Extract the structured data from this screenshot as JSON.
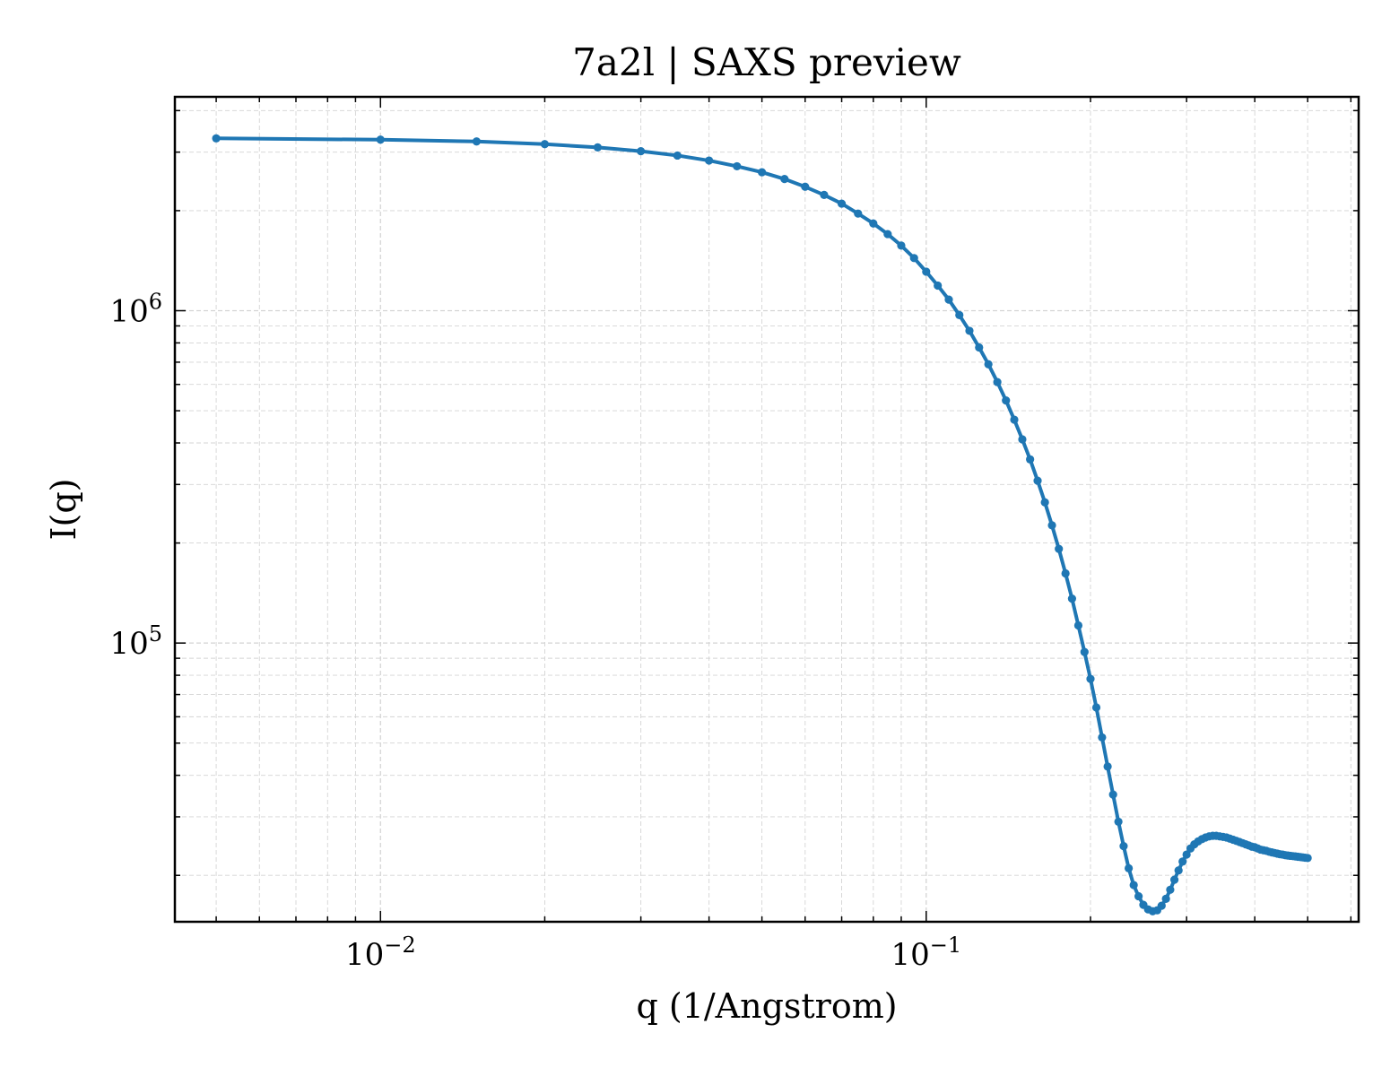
{
  "chart_data": {
    "type": "line",
    "title": "7a2l | SAXS preview",
    "xlabel": "q (1/Angstrom)",
    "ylabel": "I(q)",
    "xscale": "log",
    "yscale": "log",
    "xlim": [
      0.0042,
      0.62
    ],
    "ylim": [
      14500,
      4400000
    ],
    "grid": true,
    "legend": "none",
    "color": "#1f77b4",
    "x_ticks": [
      {
        "value": 0.01,
        "base": "10",
        "exp": "−2"
      },
      {
        "value": 0.1,
        "base": "10",
        "exp": "−1"
      }
    ],
    "y_ticks": [
      {
        "value": 100000,
        "base": "10",
        "exp": "5"
      },
      {
        "value": 1000000,
        "base": "10",
        "exp": "6"
      }
    ],
    "series": [
      {
        "values": [
          [
            0.005,
            3300000
          ],
          [
            0.01,
            3270000
          ],
          [
            0.015,
            3230000
          ],
          [
            0.02,
            3170000
          ],
          [
            0.025,
            3100000
          ],
          [
            0.03,
            3020000
          ],
          [
            0.035,
            2930000
          ],
          [
            0.04,
            2830000
          ],
          [
            0.045,
            2720000
          ],
          [
            0.05,
            2610000
          ],
          [
            0.055,
            2490000
          ],
          [
            0.06,
            2360000
          ],
          [
            0.065,
            2230000
          ],
          [
            0.07,
            2100000
          ],
          [
            0.075,
            1960000
          ],
          [
            0.08,
            1830000
          ],
          [
            0.085,
            1700000
          ],
          [
            0.09,
            1570000
          ],
          [
            0.095,
            1440000
          ],
          [
            0.1,
            1310000
          ],
          [
            0.105,
            1190000
          ],
          [
            0.11,
            1080000
          ],
          [
            0.115,
            970000
          ],
          [
            0.12,
            870000
          ],
          [
            0.125,
            775000
          ],
          [
            0.13,
            690000
          ],
          [
            0.135,
            610000
          ],
          [
            0.14,
            537000
          ],
          [
            0.145,
            470000
          ],
          [
            0.15,
            410000
          ],
          [
            0.155,
            357000
          ],
          [
            0.16,
            308000
          ],
          [
            0.165,
            265000
          ],
          [
            0.17,
            226000
          ],
          [
            0.175,
            192000
          ],
          [
            0.18,
            162000
          ],
          [
            0.185,
            136000
          ],
          [
            0.19,
            113000
          ],
          [
            0.195,
            94000
          ],
          [
            0.2,
            78000
          ],
          [
            0.205,
            64000
          ],
          [
            0.21,
            52000
          ],
          [
            0.215,
            42500
          ],
          [
            0.22,
            35000
          ],
          [
            0.225,
            29000
          ],
          [
            0.23,
            24500
          ],
          [
            0.235,
            21000
          ],
          [
            0.24,
            18700
          ],
          [
            0.245,
            17300
          ],
          [
            0.25,
            16300
          ],
          [
            0.255,
            15800
          ],
          [
            0.26,
            15600
          ],
          [
            0.265,
            15700
          ],
          [
            0.27,
            16200
          ],
          [
            0.275,
            17000
          ],
          [
            0.28,
            18100
          ],
          [
            0.285,
            19400
          ],
          [
            0.29,
            20700
          ],
          [
            0.295,
            22000
          ],
          [
            0.3,
            23100
          ],
          [
            0.305,
            24100
          ],
          [
            0.31,
            24800
          ],
          [
            0.315,
            25300
          ],
          [
            0.32,
            25700
          ],
          [
            0.325,
            26000
          ],
          [
            0.33,
            26200
          ],
          [
            0.335,
            26300
          ],
          [
            0.34,
            26300
          ],
          [
            0.345,
            26200
          ],
          [
            0.35,
            26100
          ],
          [
            0.355,
            26000
          ],
          [
            0.36,
            25800
          ],
          [
            0.365,
            25600
          ],
          [
            0.37,
            25400
          ],
          [
            0.375,
            25200
          ],
          [
            0.38,
            25000
          ],
          [
            0.385,
            24800
          ],
          [
            0.39,
            24600
          ],
          [
            0.395,
            24400
          ],
          [
            0.4,
            24300
          ],
          [
            0.405,
            24100
          ],
          [
            0.41,
            23900
          ],
          [
            0.415,
            23800
          ],
          [
            0.42,
            23700
          ],
          [
            0.425,
            23550
          ],
          [
            0.43,
            23450
          ],
          [
            0.435,
            23350
          ],
          [
            0.44,
            23250
          ],
          [
            0.445,
            23150
          ],
          [
            0.45,
            23100
          ],
          [
            0.455,
            23000
          ],
          [
            0.46,
            22950
          ],
          [
            0.465,
            22900
          ],
          [
            0.47,
            22850
          ],
          [
            0.475,
            22800
          ],
          [
            0.48,
            22750
          ],
          [
            0.485,
            22700
          ],
          [
            0.49,
            22650
          ],
          [
            0.495,
            22600
          ],
          [
            0.5,
            22550
          ]
        ]
      }
    ]
  }
}
